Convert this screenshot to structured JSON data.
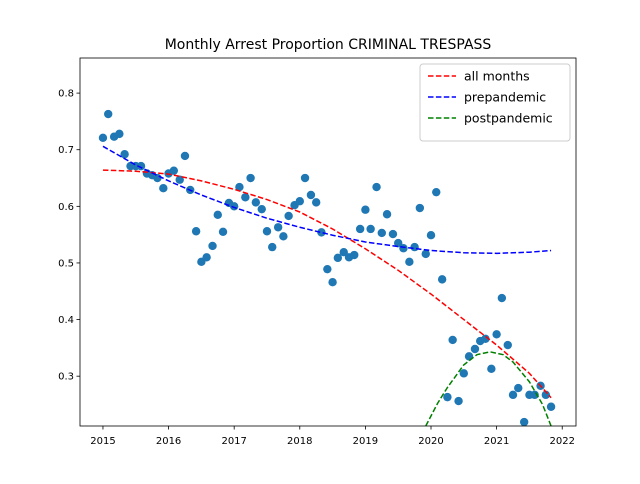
{
  "chart_data": {
    "type": "scatter",
    "title": "Monthly Arrest Proportion CRIMINAL TRESPASS",
    "color": "#1f77b4",
    "x": [
      2015.0,
      2015.08,
      2015.17,
      2015.25,
      2015.33,
      2015.42,
      2015.5,
      2015.58,
      2015.67,
      2015.75,
      2015.83,
      2015.92,
      2016.0,
      2016.08,
      2016.17,
      2016.25,
      2016.33,
      2016.42,
      2016.5,
      2016.58,
      2016.67,
      2016.75,
      2016.83,
      2016.92,
      2017.0,
      2017.08,
      2017.17,
      2017.25,
      2017.33,
      2017.42,
      2017.5,
      2017.58,
      2017.67,
      2017.75,
      2017.83,
      2017.92,
      2018.0,
      2018.08,
      2018.17,
      2018.25,
      2018.33,
      2018.42,
      2018.5,
      2018.58,
      2018.67,
      2018.75,
      2018.83,
      2018.92,
      2019.0,
      2019.08,
      2019.17,
      2019.25,
      2019.33,
      2019.42,
      2019.5,
      2019.58,
      2019.67,
      2019.75,
      2019.83,
      2019.92,
      2020.0,
      2020.08,
      2020.17,
      2020.25,
      2020.33,
      2020.42,
      2020.5,
      2020.58,
      2020.67,
      2020.75,
      2020.83,
      2020.92,
      2021.0,
      2021.08,
      2021.17,
      2021.25,
      2021.33,
      2021.42,
      2021.5,
      2021.58,
      2021.67,
      2021.75,
      2021.83
    ],
    "values": [
      0.721,
      0.763,
      0.723,
      0.728,
      0.692,
      0.671,
      0.671,
      0.671,
      0.658,
      0.655,
      0.65,
      0.632,
      0.658,
      0.663,
      0.647,
      0.689,
      0.629,
      0.556,
      0.502,
      0.51,
      0.53,
      0.585,
      0.555,
      0.606,
      0.6,
      0.634,
      0.616,
      0.65,
      0.607,
      0.595,
      0.556,
      0.528,
      0.563,
      0.547,
      0.583,
      0.602,
      0.609,
      0.65,
      0.62,
      0.607,
      0.554,
      0.489,
      0.466,
      0.509,
      0.519,
      0.51,
      0.514,
      0.56,
      0.594,
      0.56,
      0.634,
      0.553,
      0.586,
      0.551,
      0.535,
      0.526,
      0.502,
      0.528,
      0.597,
      0.516,
      0.549,
      0.625,
      0.471,
      0.263,
      0.364,
      0.256,
      0.305,
      0.335,
      0.348,
      0.362,
      0.366,
      0.313,
      0.374,
      0.438,
      0.355,
      0.267,
      0.279,
      0.219,
      0.267,
      0.267,
      0.283,
      0.267,
      0.246
    ],
    "lines": [
      {
        "name": "all months",
        "color": "#ff0000",
        "dashed": true,
        "x": [
          2015.0,
          2015.5,
          2016.0,
          2016.5,
          2017.0,
          2017.5,
          2018.0,
          2018.5,
          2019.0,
          2019.5,
          2020.0,
          2020.5,
          2021.0,
          2021.5,
          2021.83
        ],
        "values": [
          0.664,
          0.662,
          0.657,
          0.645,
          0.63,
          0.612,
          0.59,
          0.56,
          0.525,
          0.487,
          0.445,
          0.4,
          0.355,
          0.305,
          0.262
        ]
      },
      {
        "name": "prepandemic",
        "color": "#0000ff",
        "dashed": true,
        "x": [
          2015.0,
          2015.5,
          2016.0,
          2016.5,
          2017.0,
          2017.5,
          2018.0,
          2018.5,
          2019.0,
          2019.5,
          2020.0,
          2020.5,
          2021.0,
          2021.5,
          2021.83
        ],
        "values": [
          0.706,
          0.673,
          0.645,
          0.62,
          0.598,
          0.579,
          0.563,
          0.549,
          0.537,
          0.529,
          0.522,
          0.518,
          0.517,
          0.519,
          0.522
        ]
      },
      {
        "name": "postpandemic",
        "color": "#008000",
        "dashed": true,
        "x": [
          2019.92,
          2020.1,
          2020.25,
          2020.5,
          2020.7,
          2020.9,
          2021.1,
          2021.25,
          2021.5,
          2021.7,
          2021.83
        ],
        "values": [
          0.212,
          0.252,
          0.28,
          0.32,
          0.338,
          0.343,
          0.338,
          0.325,
          0.29,
          0.25,
          0.212
        ]
      }
    ],
    "xlim": [
      2014.65,
      2022.21
    ],
    "ylim": [
      0.212,
      0.862
    ],
    "xticks": [
      2015,
      2016,
      2017,
      2018,
      2019,
      2020,
      2021,
      2022
    ],
    "yticks": [
      0.3,
      0.4,
      0.5,
      0.6,
      0.7,
      0.8
    ],
    "legend": "upper right"
  }
}
